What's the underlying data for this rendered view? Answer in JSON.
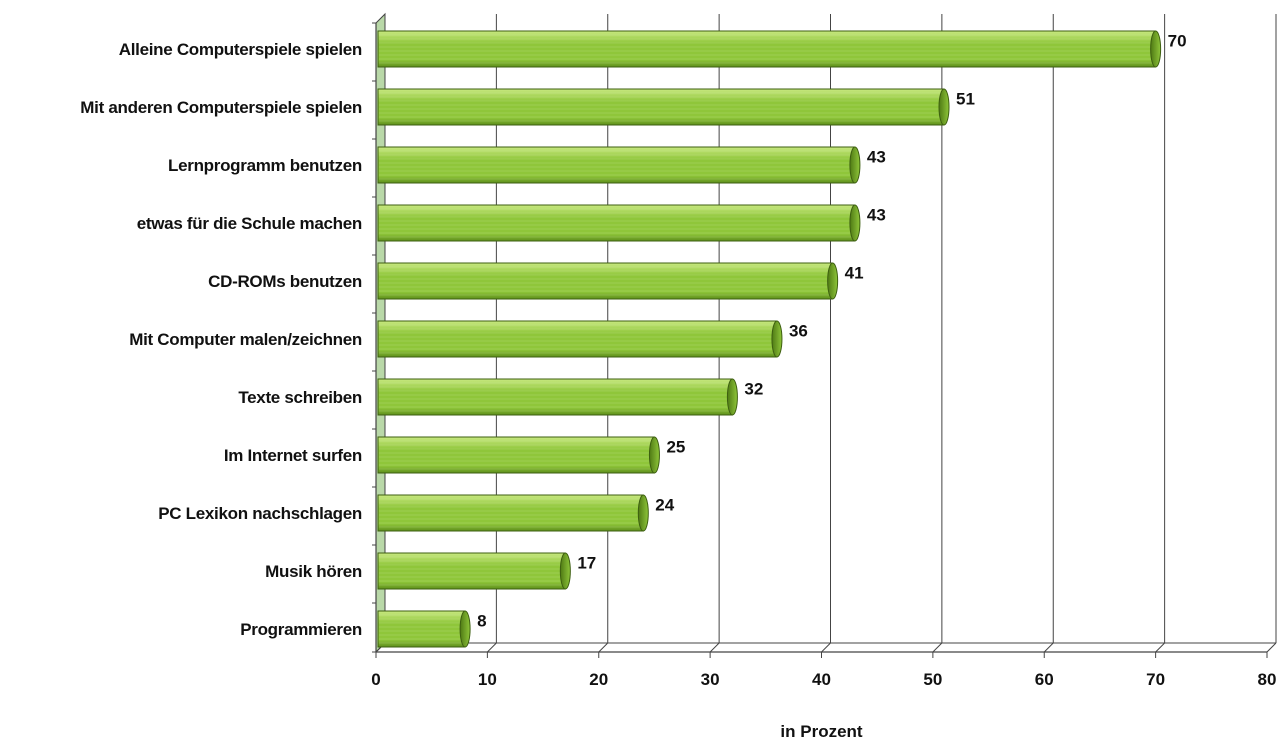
{
  "chart_data": {
    "type": "bar",
    "orientation": "horizontal",
    "categories": [
      "Alleine Computerspiele spielen",
      "Mit anderen Computerspiele spielen",
      "Lernprogramm benutzen",
      "etwas für die Schule machen",
      "CD-ROMs benutzen",
      "Mit Computer malen/zeichnen",
      "Texte schreiben",
      "Im Internet surfen",
      "PC Lexikon nachschlagen",
      "Musik hören",
      "Programmieren"
    ],
    "values": [
      70,
      51,
      43,
      43,
      41,
      36,
      32,
      25,
      24,
      17,
      8
    ],
    "value_labels": [
      "70",
      "51",
      "43",
      "43",
      "41",
      "36",
      "32",
      "25",
      "24",
      "17",
      "8"
    ],
    "xlabel": "in Prozent",
    "ylabel": "",
    "xlim": [
      0,
      80
    ],
    "xticks": [
      0,
      10,
      20,
      30,
      40,
      50,
      60,
      70,
      80
    ],
    "xtick_labels": [
      "0",
      "10",
      "20",
      "30",
      "40",
      "50",
      "60",
      "70",
      "80"
    ],
    "grid": true,
    "style": "3d-cylinder",
    "colors": {
      "bar_light": "#c8e880",
      "bar_main": "#8fc63a",
      "bar_dark": "#5e8f1c",
      "bar_cap": "#4f7a14",
      "outline": "#3d5f10",
      "grid": "#444444",
      "wall": "#b9d8a8"
    }
  }
}
